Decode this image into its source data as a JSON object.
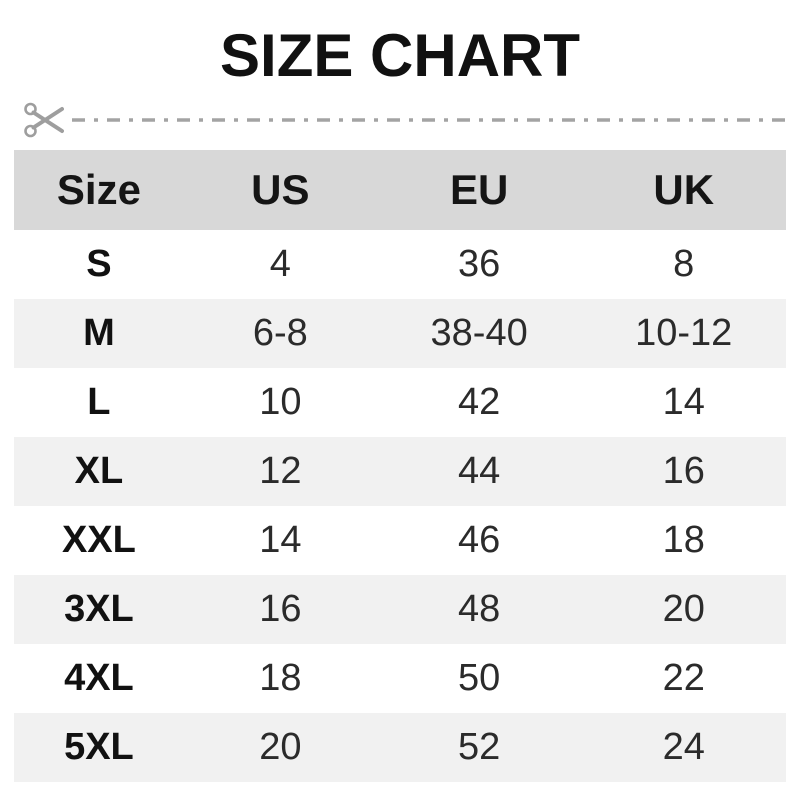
{
  "title": "SIZE CHART",
  "cut_line": {
    "icon": "scissors-icon",
    "color": "#9e9e9e"
  },
  "colors": {
    "header_bg": "#d8d8d8",
    "alt_row_bg": "#f1f1f1",
    "row_bg": "#ffffff",
    "title_text": "#111111",
    "body_text": "#2b2b2b"
  },
  "chart_data": {
    "type": "table",
    "title": "SIZE CHART",
    "columns": [
      "Size",
      "US",
      "EU",
      "UK"
    ],
    "rows": [
      [
        "S",
        "4",
        "36",
        "8"
      ],
      [
        "M",
        "6-8",
        "38-40",
        "10-12"
      ],
      [
        "L",
        "10",
        "42",
        "14"
      ],
      [
        "XL",
        "12",
        "44",
        "16"
      ],
      [
        "XXL",
        "14",
        "46",
        "18"
      ],
      [
        "3XL",
        "16",
        "48",
        "20"
      ],
      [
        "4XL",
        "18",
        "50",
        "22"
      ],
      [
        "5XL",
        "20",
        "52",
        "24"
      ]
    ]
  }
}
